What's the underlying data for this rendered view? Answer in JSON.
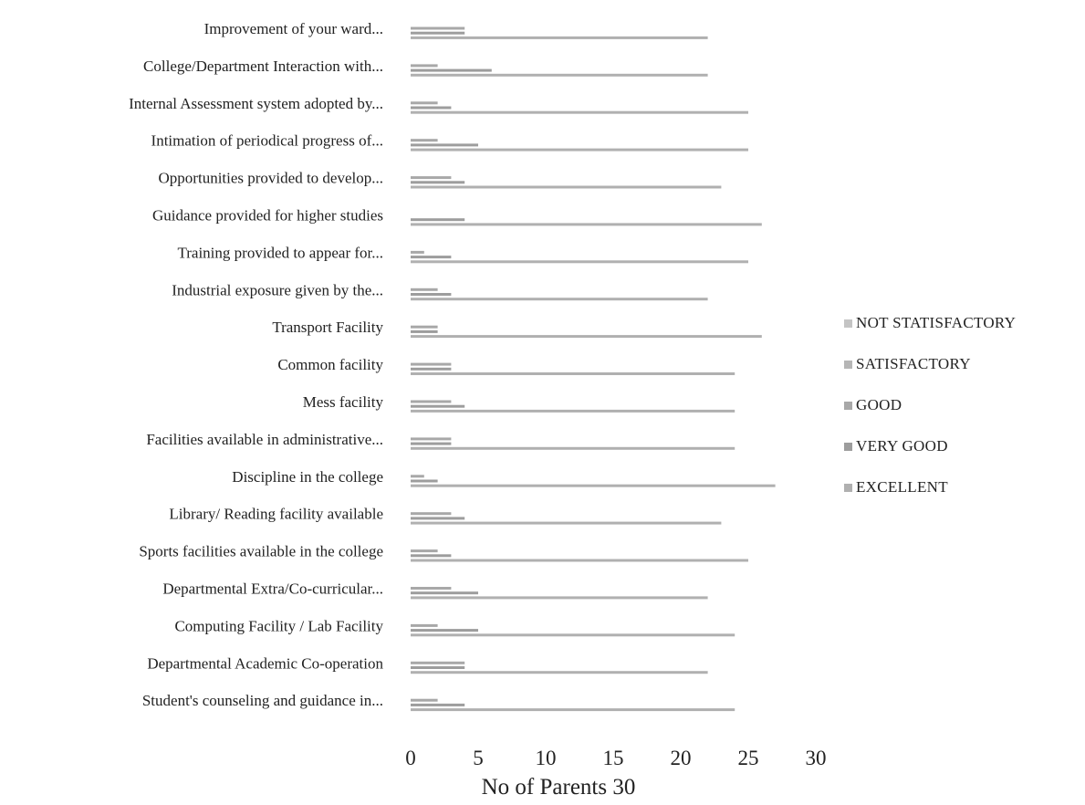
{
  "chart_data": {
    "type": "bar",
    "orientation": "horizontal",
    "stacked": false,
    "categories": [
      "Improvement of your ward...",
      "College/Department Interaction with...",
      "Internal Assessment system adopted by...",
      "Intimation of periodical progress of...",
      "Opportunities provided to develop...",
      "Guidance provided for higher studies",
      "Training provided to appear for...",
      "Industrial exposure given by the...",
      "Transport Facility",
      "Common facility",
      "Mess facility",
      "Facilities available in administrative...",
      "Discipline in the college",
      "Library/ Reading facility available",
      "Sports facilities available in the college",
      "Departmental Extra/Co-curricular...",
      "Computing Facility / Lab Facility",
      "Departmental Academic Co-operation",
      "Student's counseling and guidance in..."
    ],
    "series": [
      {
        "name": "NOT STATISFACTORY",
        "color": "#c4c4c4",
        "values": [
          0,
          0,
          0,
          0,
          0,
          0,
          0,
          0,
          0,
          0,
          0,
          0,
          0,
          0,
          0,
          0,
          0,
          0,
          0
        ]
      },
      {
        "name": "SATISFACTORY",
        "color": "#b6b6b6",
        "values": [
          0,
          0,
          0,
          0,
          0,
          0,
          0,
          0,
          0,
          0,
          0,
          0,
          0,
          0,
          0,
          0,
          0,
          0,
          0
        ]
      },
      {
        "name": "GOOD",
        "color": "#a8a8a8",
        "values": [
          4,
          2,
          2,
          2,
          3,
          0,
          1,
          2,
          2,
          3,
          3,
          3,
          1,
          3,
          2,
          3,
          2,
          4,
          2
        ]
      },
      {
        "name": "VERY GOOD",
        "color": "#9d9d9d",
        "values": [
          4,
          6,
          3,
          5,
          4,
          4,
          3,
          3,
          2,
          3,
          4,
          3,
          2,
          4,
          3,
          5,
          5,
          4,
          4
        ]
      },
      {
        "name": "EXCELLENT",
        "color": "#b0b0b0",
        "values": [
          22,
          22,
          25,
          25,
          23,
          26,
          25,
          22,
          26,
          24,
          24,
          24,
          27,
          23,
          25,
          22,
          24,
          22,
          24
        ]
      }
    ],
    "xlim": [
      0,
      30
    ],
    "xticks": [
      "0",
      "5",
      "10",
      "15",
      "20",
      "25",
      "30"
    ],
    "xlabel": "No of  Parents   30",
    "ylabel": "",
    "title": "",
    "grid": false,
    "legend_position": "right",
    "legend_order": [
      "NOT STATISFACTORY",
      "SATISFACTORY",
      "GOOD",
      "VERY GOOD",
      "EXCELLENT"
    ]
  }
}
